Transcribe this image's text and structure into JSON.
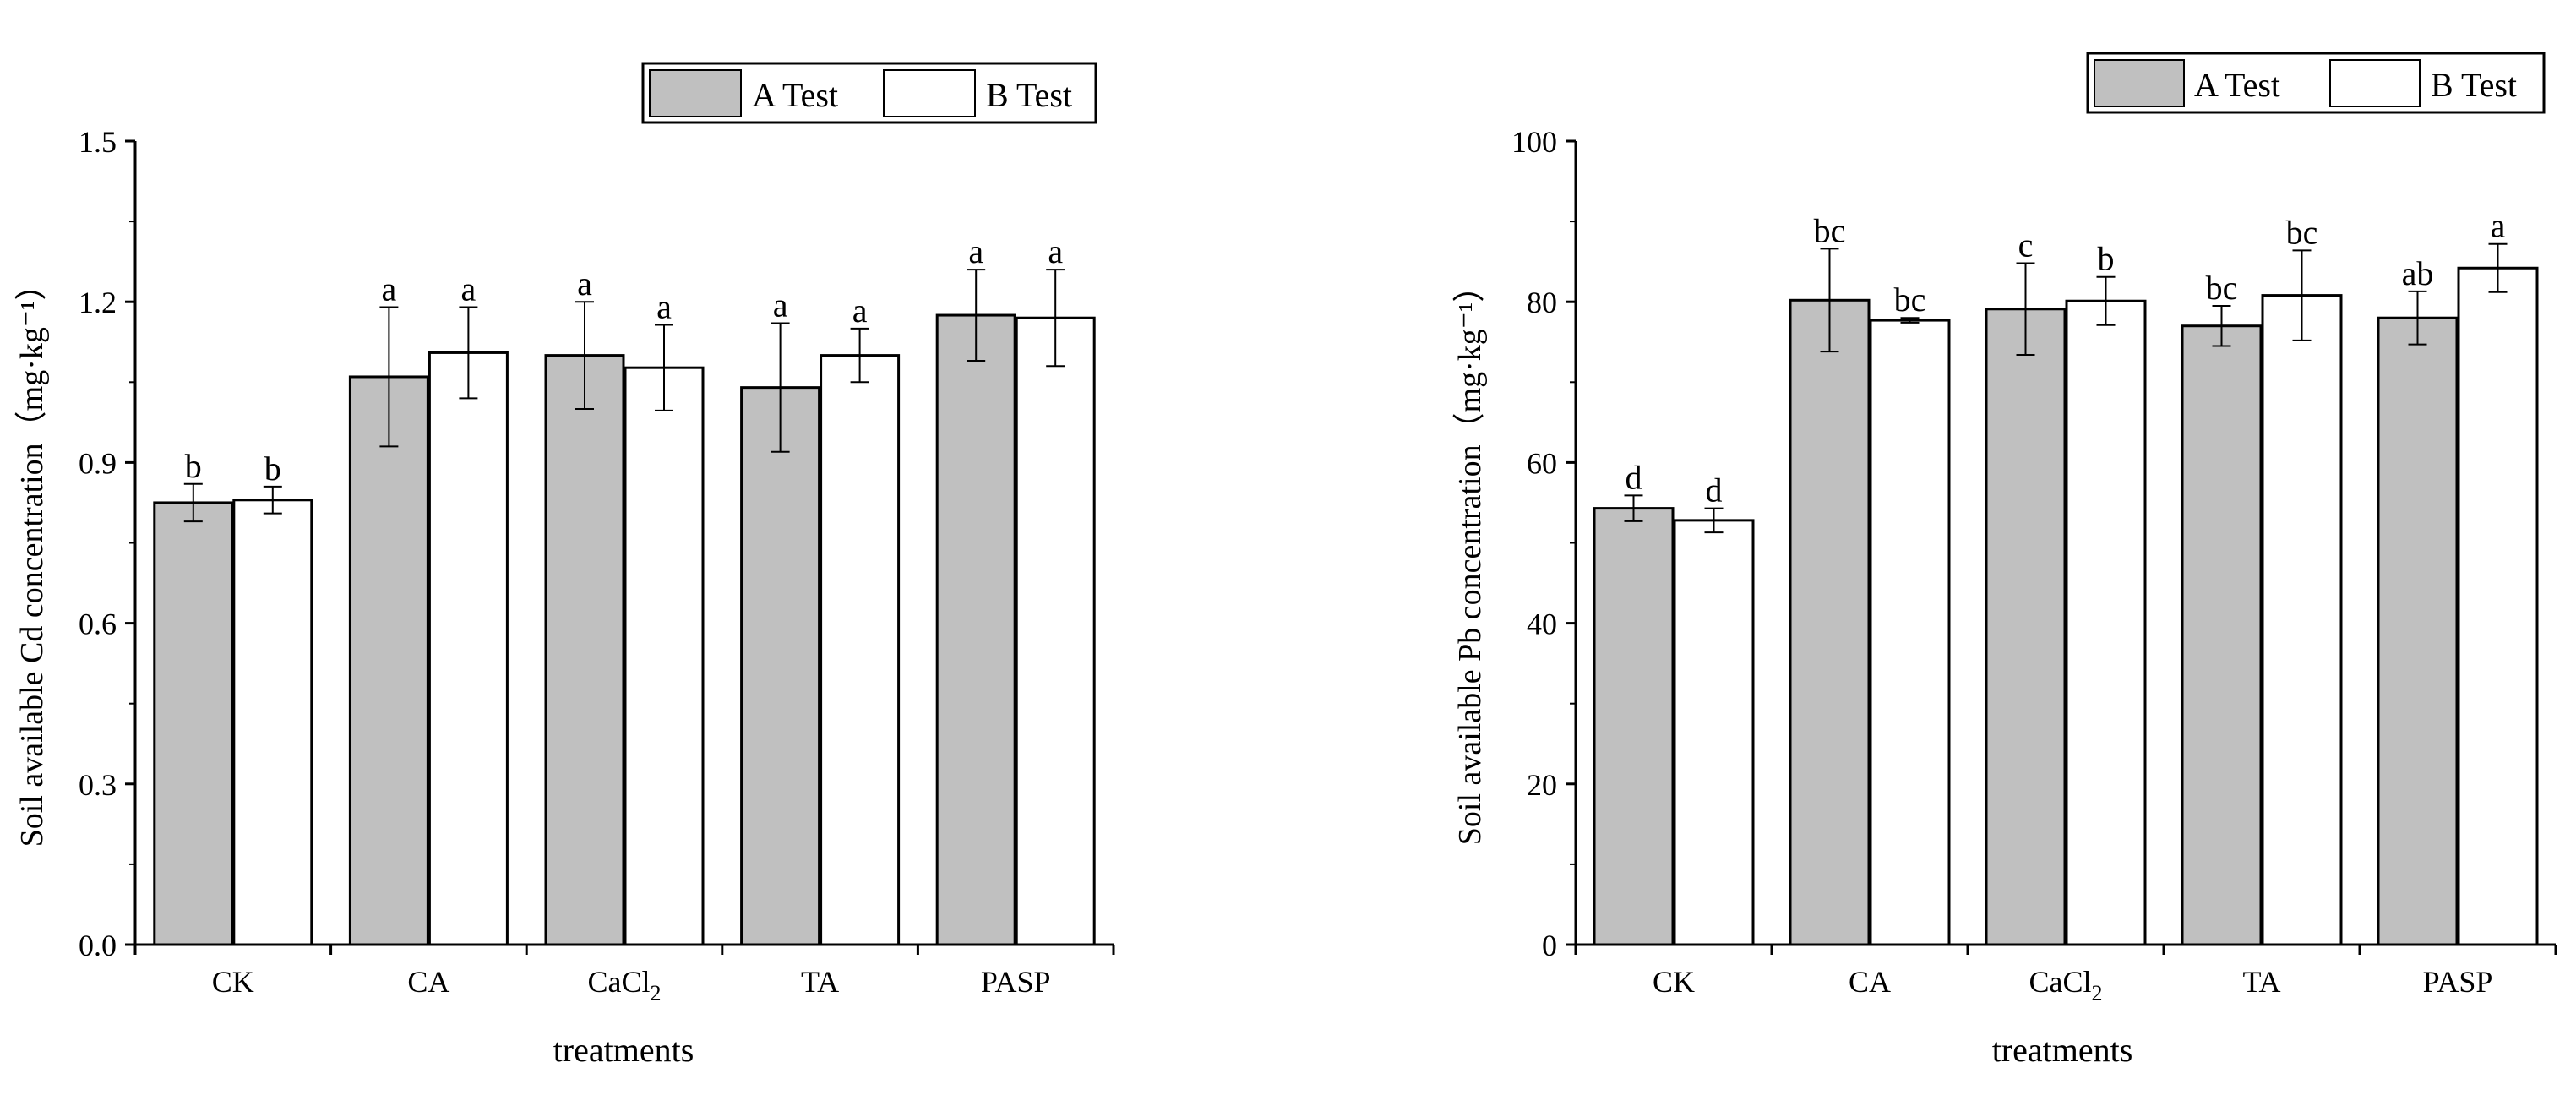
{
  "colors": {
    "series_a": "#c0c0c0",
    "series_b": "#ffffff",
    "axis": "#000000"
  },
  "chart_data": [
    {
      "type": "bar",
      "title": "",
      "xlabel": "treatments",
      "ylabel": "Soil available Cd concentration（mg·kg⁻¹）",
      "ylim": [
        0,
        1.5
      ],
      "yticks": [
        "0.0",
        "0.3",
        "0.6",
        "0.9",
        "1.2",
        "1.5"
      ],
      "categories": [
        "CK",
        "CA",
        "CaCl₂",
        "TA",
        "PASP"
      ],
      "legend": [
        "A Test",
        "B Test"
      ],
      "series": [
        {
          "name": "A Test",
          "values": [
            0.825,
            1.06,
            1.1,
            1.04,
            1.175
          ],
          "errors": [
            0.035,
            0.13,
            0.1,
            0.12,
            0.085
          ],
          "letters": [
            "b",
            "a",
            "a",
            "a",
            "a"
          ]
        },
        {
          "name": "B Test",
          "values": [
            0.83,
            1.105,
            1.077,
            1.1,
            1.17
          ],
          "errors": [
            0.025,
            0.085,
            0.08,
            0.05,
            0.09
          ],
          "letters": [
            "b",
            "a",
            "a",
            "a",
            "a"
          ]
        }
      ]
    },
    {
      "type": "bar",
      "title": "",
      "xlabel": "treatments",
      "ylabel": "Soil available Pb concentration（mg·kg⁻¹）",
      "ylim": [
        0,
        100
      ],
      "yticks": [
        "0",
        "20",
        "40",
        "60",
        "80",
        "100"
      ],
      "categories": [
        "CK",
        "CA",
        "CaCl₂",
        "TA",
        "PASP"
      ],
      "legend": [
        "A Test",
        "B Test"
      ],
      "series": [
        {
          "name": "A Test",
          "values": [
            54.3,
            80.2,
            79.1,
            77.0,
            78.0
          ],
          "errors": [
            1.6,
            6.4,
            5.7,
            2.5,
            3.3
          ],
          "letters": [
            "d",
            "bc",
            "c",
            "bc",
            "ab"
          ]
        },
        {
          "name": "B Test",
          "values": [
            52.8,
            77.7,
            80.1,
            80.8,
            84.2
          ],
          "errors": [
            1.5,
            0.3,
            3.0,
            5.6,
            3.0
          ],
          "letters": [
            "d",
            "bc",
            "b",
            "bc",
            "a"
          ]
        }
      ]
    }
  ]
}
